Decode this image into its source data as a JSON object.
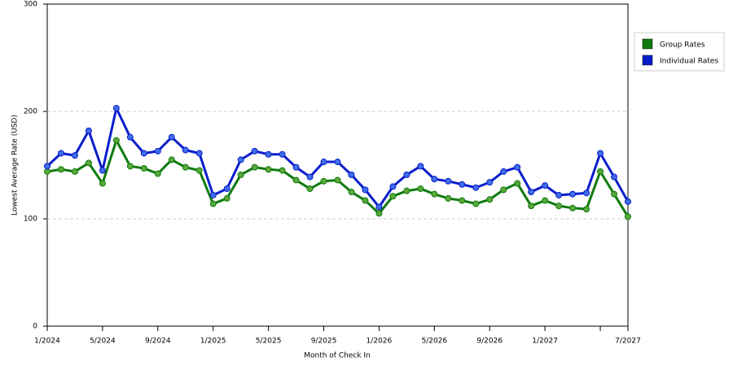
{
  "chart_data": {
    "type": "line",
    "x_label": "Month of Check In",
    "y_label": "Lowest Average Rate (USD)",
    "categories": [
      "1/2024",
      null,
      null,
      null,
      "5/2024",
      null,
      null,
      null,
      "9/2024",
      null,
      null,
      null,
      "1/2025",
      null,
      null,
      null,
      "5/2025",
      null,
      null,
      null,
      "9/2025",
      null,
      null,
      null,
      "1/2026",
      null,
      null,
      null,
      "5/2026",
      null,
      null,
      null,
      "9/2026",
      null,
      null,
      null,
      "1/2027",
      null,
      null,
      null,
      null,
      null,
      "7/2027"
    ],
    "series": [
      {
        "name": "Group Rates",
        "color": "#0f7a0f",
        "marker_color": "#5aa83a",
        "values": [
          144,
          146,
          144,
          152,
          133,
          173,
          149,
          147,
          142,
          155,
          148,
          145,
          114,
          119,
          141,
          148,
          146,
          145,
          136,
          128,
          135,
          136,
          125,
          117,
          105,
          121,
          126,
          128,
          123,
          119,
          117,
          114,
          118,
          127,
          133,
          112,
          117,
          112,
          110,
          109,
          144,
          123,
          102
        ]
      },
      {
        "name": "Individual Rates",
        "color": "#0a1ecc",
        "marker_color": "#3f6ee8",
        "values": [
          149,
          161,
          159,
          182,
          145,
          203,
          176,
          161,
          163,
          176,
          164,
          161,
          122,
          128,
          155,
          163,
          160,
          160,
          148,
          139,
          153,
          153,
          141,
          127,
          111,
          130,
          141,
          149,
          137,
          135,
          132,
          129,
          134,
          144,
          148,
          125,
          131,
          122,
          123,
          124,
          161,
          139,
          116
        ]
      }
    ],
    "ylim": [
      0,
      300
    ],
    "yticks": [
      0,
      100,
      200,
      300
    ],
    "grid": true,
    "legend": "right"
  }
}
